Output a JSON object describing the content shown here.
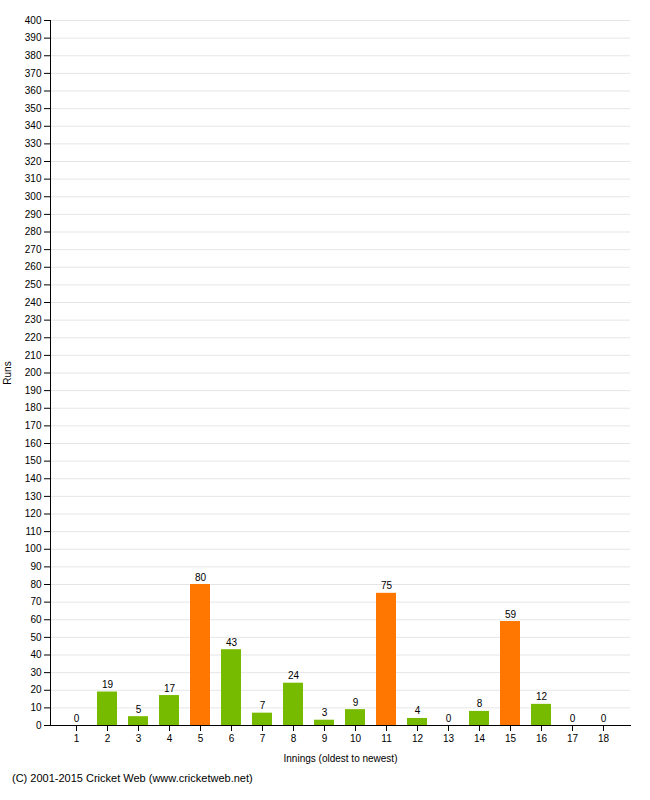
{
  "chart_data": {
    "type": "bar",
    "xlabel": "Innings (oldest to newest)",
    "ylabel": "Runs",
    "categories": [
      1,
      2,
      3,
      4,
      5,
      6,
      7,
      8,
      9,
      10,
      11,
      12,
      13,
      14,
      15,
      16,
      17,
      18
    ],
    "values": [
      0,
      19,
      5,
      17,
      80,
      43,
      7,
      24,
      3,
      9,
      75,
      4,
      0,
      8,
      59,
      12,
      0,
      0
    ],
    "colors": [
      "#77bb00",
      "#77bb00",
      "#77bb00",
      "#77bb00",
      "#ff7700",
      "#77bb00",
      "#77bb00",
      "#77bb00",
      "#77bb00",
      "#77bb00",
      "#ff7700",
      "#77bb00",
      "#77bb00",
      "#77bb00",
      "#ff7700",
      "#77bb00",
      "#77bb00",
      "#77bb00"
    ],
    "ylim": [
      0,
      400
    ],
    "yticks": [
      0,
      10,
      20,
      30,
      40,
      50,
      60,
      70,
      80,
      90,
      100,
      110,
      120,
      130,
      140,
      150,
      160,
      170,
      180,
      190,
      200,
      210,
      220,
      230,
      240,
      250,
      260,
      270,
      280,
      290,
      300,
      310,
      320,
      330,
      340,
      350,
      360,
      370,
      380,
      390,
      400
    ],
    "grid": true,
    "data_labels": true,
    "caption": "(C) 2001-2015 Cricket Web (www.cricketweb.net)"
  }
}
